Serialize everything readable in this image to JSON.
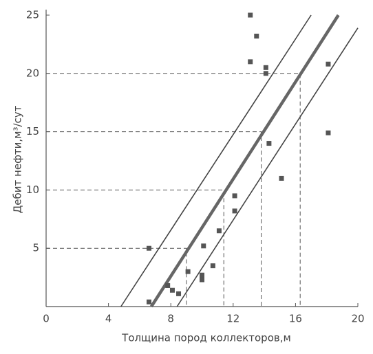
{
  "chart_data": {
    "type": "scatter",
    "x_label": "Толщина пород коллекторов,м",
    "y_label": "Дебит нефти,м³/сут",
    "xlim": [
      0,
      20
    ],
    "ylim": [
      0,
      25
    ],
    "xticks": [
      0,
      4,
      8,
      12,
      16,
      20
    ],
    "yticks": [
      5,
      10,
      15,
      20,
      25
    ],
    "color": "#555555",
    "points": {
      "x": [
        6.6,
        6.6,
        7.8,
        8.1,
        8.5,
        9.1,
        10.1,
        10.0,
        10.0,
        10.7,
        11.1,
        12.1,
        12.1,
        13.1,
        13.5,
        13.1,
        14.1,
        14.1,
        14.3,
        15.1,
        18.1,
        18.1
      ],
      "y": [
        5.0,
        0.4,
        1.8,
        1.4,
        1.1,
        3.0,
        5.2,
        2.7,
        2.3,
        3.5,
        6.5,
        8.2,
        9.5,
        25.0,
        23.2,
        21.0,
        20.5,
        20.0,
        14.0,
        11.0,
        20.8,
        14.9
      ]
    },
    "lines": [
      {
        "x": [
          4.8,
          17.0
        ],
        "y": [
          0,
          25
        ]
      },
      {
        "x": [
          6.75,
          18.75
        ],
        "y": [
          0,
          25
        ]
      },
      {
        "x": [
          8.4,
          20.0
        ],
        "y": [
          0,
          23.9
        ]
      }
    ],
    "guides": {
      "x": [
        9.0,
        11.4,
        13.8,
        16.3
      ],
      "y": [
        5,
        10,
        15,
        20
      ]
    }
  }
}
